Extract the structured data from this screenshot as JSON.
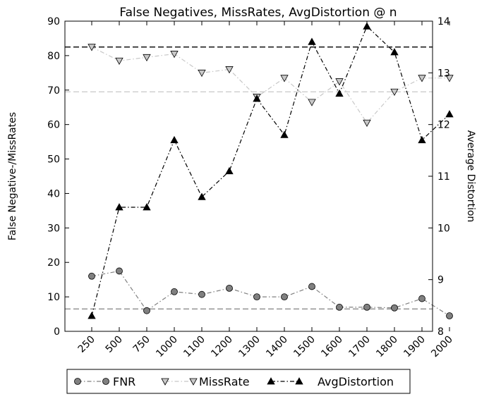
{
  "chart_data": {
    "type": "line",
    "title": "False Negatives, MissRates, AvgDistortion @ n",
    "xlabel": "",
    "ylabel": "False Negative-/MissRates",
    "y2label": "Average Distortion",
    "categories": [
      "250",
      "500",
      "750",
      "1000",
      "1100",
      "1200",
      "1300",
      "1400",
      "1500",
      "1600",
      "1700",
      "1800",
      "1900",
      "2000"
    ],
    "ylim": [
      0,
      90
    ],
    "yticks": [
      0,
      10,
      20,
      30,
      40,
      50,
      60,
      70,
      80,
      90
    ],
    "y2lim": [
      8,
      14
    ],
    "y2ticks": [
      8,
      9,
      10,
      11,
      12,
      13,
      14
    ],
    "series": [
      {
        "name": "FNR",
        "axis": "left",
        "marker": "circle",
        "color": "#808080",
        "values": [
          16,
          17.5,
          6,
          11.5,
          10.7,
          12.5,
          10,
          10,
          13,
          7,
          7,
          6.8,
          9.5,
          4.5
        ],
        "mean": 6.5
      },
      {
        "name": "MissRate",
        "axis": "left",
        "marker": "triangle-down",
        "color": "#c8c8c8",
        "values": [
          82.5,
          78.5,
          79.5,
          80.5,
          75,
          76,
          68,
          73.5,
          66.5,
          72.5,
          60.5,
          69.5,
          73.5,
          73.5
        ],
        "mean": 69.5
      },
      {
        "name": "AvgDistortion",
        "axis": "right",
        "marker": "triangle-up",
        "color": "#000000",
        "values": [
          8.3,
          10.4,
          10.4,
          11.7,
          10.6,
          11.1,
          12.5,
          11.8,
          13.6,
          12.6,
          13.9,
          13.4,
          11.7,
          12.2
        ],
        "mean": 13.5
      }
    ],
    "grid": false,
    "legend": "bottom"
  }
}
